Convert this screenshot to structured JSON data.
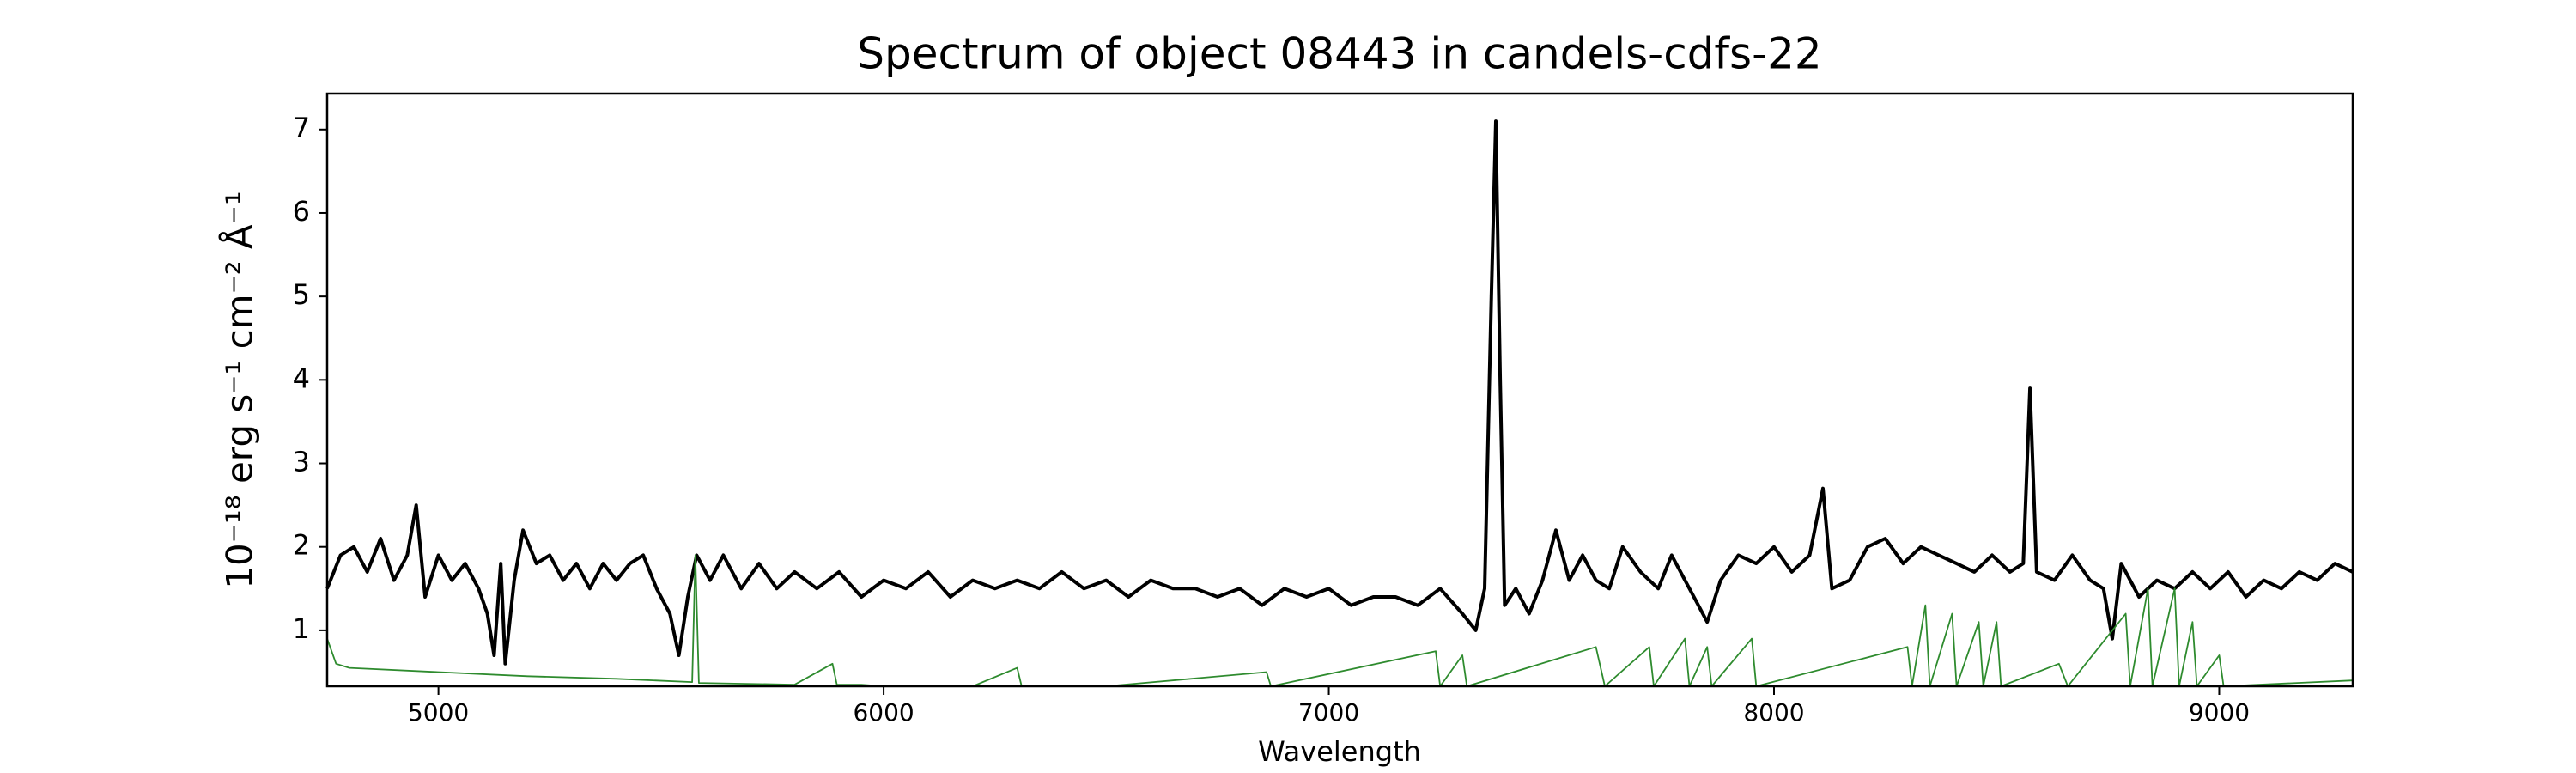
{
  "chart_data": {
    "type": "line",
    "title": "Spectrum of object 08443 in candels-cdfs-22",
    "xlabel": "Wavelength",
    "ylabel": "10⁻¹⁸ erg s⁻¹ cm⁻² Å⁻¹",
    "xlim": [
      4750,
      9300
    ],
    "ylim": [
      0.33,
      7.43
    ],
    "xticks": [
      5000,
      6000,
      7000,
      8000,
      9000
    ],
    "yticks": [
      1,
      2,
      3,
      4,
      5,
      6,
      7
    ],
    "grid": false,
    "series": [
      {
        "color": "#000000",
        "x": [
          4750,
          4780,
          4810,
          4840,
          4870,
          4900,
          4930,
          4950,
          4970,
          5000,
          5030,
          5060,
          5090,
          5110,
          5125,
          5140,
          5150,
          5170,
          5190,
          5220,
          5250,
          5280,
          5310,
          5340,
          5370,
          5400,
          5430,
          5460,
          5490,
          5520,
          5540,
          5560,
          5580,
          5610,
          5640,
          5680,
          5720,
          5760,
          5800,
          5850,
          5900,
          5950,
          6000,
          6050,
          6100,
          6150,
          6200,
          6250,
          6300,
          6350,
          6400,
          6450,
          6500,
          6550,
          6600,
          6650,
          6700,
          6750,
          6800,
          6850,
          6900,
          6950,
          7000,
          7050,
          7100,
          7150,
          7200,
          7250,
          7300,
          7330,
          7350,
          7365,
          7375,
          7385,
          7395,
          7420,
          7450,
          7480,
          7510,
          7540,
          7570,
          7600,
          7630,
          7660,
          7700,
          7740,
          7770,
          7800,
          7830,
          7850,
          7880,
          7920,
          7960,
          8000,
          8040,
          8080,
          8110,
          8130,
          8170,
          8210,
          8250,
          8290,
          8330,
          8370,
          8410,
          8450,
          8490,
          8530,
          8560,
          8575,
          8590,
          8630,
          8670,
          8710,
          8740,
          8760,
          8780,
          8820,
          8860,
          8900,
          8940,
          8980,
          9020,
          9060,
          9100,
          9140,
          9180,
          9220,
          9260,
          9300
        ],
        "values": [
          1.5,
          1.9,
          2.0,
          1.7,
          2.1,
          1.6,
          1.9,
          2.5,
          1.4,
          1.9,
          1.6,
          1.8,
          1.5,
          1.2,
          0.7,
          1.8,
          0.6,
          1.6,
          2.2,
          1.8,
          1.9,
          1.6,
          1.8,
          1.5,
          1.8,
          1.6,
          1.8,
          1.9,
          1.5,
          1.2,
          0.7,
          1.4,
          1.9,
          1.6,
          1.9,
          1.5,
          1.8,
          1.5,
          1.7,
          1.5,
          1.7,
          1.4,
          1.6,
          1.5,
          1.7,
          1.4,
          1.6,
          1.5,
          1.6,
          1.5,
          1.7,
          1.5,
          1.6,
          1.4,
          1.6,
          1.5,
          1.5,
          1.4,
          1.5,
          1.3,
          1.5,
          1.4,
          1.5,
          1.3,
          1.4,
          1.4,
          1.3,
          1.5,
          1.2,
          1.0,
          1.5,
          5.0,
          7.1,
          4.0,
          1.3,
          1.5,
          1.2,
          1.6,
          2.2,
          1.6,
          1.9,
          1.6,
          1.5,
          2.0,
          1.7,
          1.5,
          1.9,
          1.6,
          1.3,
          1.1,
          1.6,
          1.9,
          1.8,
          2.0,
          1.7,
          1.9,
          2.7,
          1.5,
          1.6,
          2.0,
          2.1,
          1.8,
          2.0,
          1.9,
          1.8,
          1.7,
          1.9,
          1.7,
          1.8,
          3.9,
          1.7,
          1.6,
          1.9,
          1.6,
          1.5,
          0.9,
          1.8,
          1.4,
          1.6,
          1.5,
          1.7,
          1.5,
          1.7,
          1.4,
          1.6,
          1.5,
          1.7,
          1.6,
          1.8,
          1.7
        ]
      },
      {
        "color": "#2e8b2e",
        "x": [
          4750,
          4770,
          4800,
          5000,
          5200,
          5400,
          5570,
          5577,
          5585,
          5800,
          5885,
          5895,
          5950,
          6000,
          6200,
          6300,
          6310,
          6500,
          6860,
          6870,
          7240,
          7250,
          7300,
          7310,
          7600,
          7620,
          7720,
          7730,
          7800,
          7810,
          7850,
          7860,
          7950,
          7960,
          8300,
          8310,
          8340,
          8350,
          8400,
          8410,
          8460,
          8470,
          8500,
          8510,
          8640,
          8660,
          8790,
          8800,
          8840,
          8850,
          8900,
          8910,
          8940,
          8950,
          9000,
          9010,
          9300
        ],
        "values": [
          0.9,
          0.6,
          0.55,
          0.5,
          0.45,
          0.42,
          0.38,
          1.9,
          0.37,
          0.35,
          0.6,
          0.35,
          0.35,
          0.33,
          0.33,
          0.55,
          0.33,
          0.33,
          0.5,
          0.33,
          0.75,
          0.33,
          0.7,
          0.33,
          0.8,
          0.33,
          0.8,
          0.33,
          0.9,
          0.33,
          0.8,
          0.33,
          0.9,
          0.33,
          0.8,
          0.33,
          1.3,
          0.33,
          1.2,
          0.33,
          1.1,
          0.33,
          1.1,
          0.33,
          0.6,
          0.33,
          1.2,
          0.33,
          1.5,
          0.33,
          1.5,
          0.33,
          1.1,
          0.33,
          0.7,
          0.33,
          0.4
        ]
      }
    ]
  }
}
